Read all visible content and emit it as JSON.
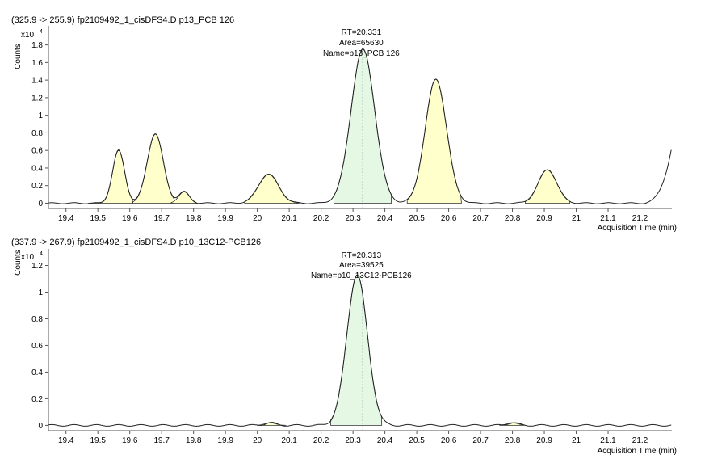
{
  "chart_data": [
    {
      "type": "line",
      "title": "(325.9 -> 255.9) fp2109492_1_cisDFS4.D p13_PCB 126",
      "ylabel": "Counts",
      "yscale": "x10",
      "yscale_exp": "4",
      "xlabel": "Acquisition Time (min)",
      "xlim": [
        19.345,
        21.3
      ],
      "ylim": [
        -0.06,
        1.98
      ],
      "xticks": [
        "19.4",
        "19.5",
        "19.6",
        "19.7",
        "19.8",
        "19.9",
        "20",
        "20.1",
        "20.2",
        "20.3",
        "20.4",
        "20.5",
        "20.6",
        "20.7",
        "20.8",
        "20.9",
        "21",
        "21.1",
        "21.2"
      ],
      "yticks": [
        "0",
        "0.2",
        "0.4",
        "0.6",
        "0.8",
        "1",
        "1.2",
        "1.4",
        "1.6",
        "1.8"
      ],
      "annotation": {
        "rt": "RT=20.331",
        "area": "Area=65630",
        "name": "Name=p13_PCB 126",
        "x": 20.331
      },
      "peaks": [
        {
          "start": 19.47,
          "end": 19.61,
          "apex": 19.565,
          "height": 0.6,
          "fill": "#ffffcc"
        },
        {
          "start": 19.61,
          "end": 19.74,
          "apex": 19.68,
          "height": 0.79,
          "fill": "#ffffcc"
        },
        {
          "start": 19.73,
          "end": 19.81,
          "apex": 19.77,
          "height": 0.13,
          "fill": "#ffffcc"
        },
        {
          "start": 19.96,
          "end": 20.13,
          "apex": 20.035,
          "height": 0.33,
          "fill": "#ffffcc"
        },
        {
          "start": 20.24,
          "end": 20.42,
          "apex": 20.331,
          "height": 1.75,
          "fill": "#e4f8e4"
        },
        {
          "start": 20.47,
          "end": 20.64,
          "apex": 20.56,
          "height": 1.41,
          "fill": "#ffffcc"
        },
        {
          "start": 20.84,
          "end": 20.98,
          "apex": 20.91,
          "height": 0.38,
          "fill": "#ffffcc"
        }
      ],
      "tail": {
        "start": 21.2,
        "end": 21.3,
        "end_value": 0.64
      }
    },
    {
      "type": "line",
      "title": "(337.9 -> 267.9) fp2109492_1_cisDFS4.D p10_13C12-PCB126",
      "ylabel": "Counts",
      "yscale": "x10",
      "yscale_exp": "4",
      "xlabel": "Acquisition Time (min)",
      "xlim": [
        19.345,
        21.3
      ],
      "ylim": [
        -0.04,
        1.3
      ],
      "xticks": [
        "19.4",
        "19.5",
        "19.6",
        "19.7",
        "19.8",
        "19.9",
        "20",
        "20.1",
        "20.2",
        "20.3",
        "20.4",
        "20.5",
        "20.6",
        "20.7",
        "20.8",
        "20.9",
        "21",
        "21.1",
        "21.2"
      ],
      "yticks": [
        "0",
        "0.2",
        "0.4",
        "0.6",
        "0.8",
        "1",
        "1.2"
      ],
      "annotation": {
        "rt": "RT=20.313",
        "area": "Area=39525",
        "name": "Name=p10_13C12-PCB126",
        "x": 20.331
      },
      "peaks": [
        {
          "start": 20.23,
          "end": 20.39,
          "apex": 20.313,
          "height": 1.13,
          "fill": "#e4f8e4"
        },
        {
          "start": 20.0,
          "end": 20.09,
          "apex": 20.04,
          "height": 0.02,
          "fill": "#ffffcc"
        },
        {
          "start": 20.76,
          "end": 20.84,
          "apex": 20.8,
          "height": 0.02,
          "fill": "#ffffcc"
        }
      ],
      "tail": null
    }
  ]
}
